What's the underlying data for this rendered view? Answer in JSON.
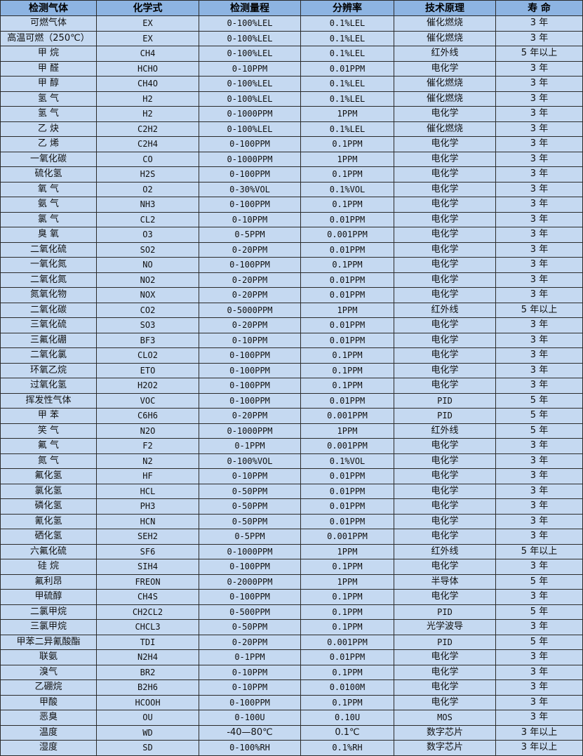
{
  "colors": {
    "header_bg": "#8db4e2",
    "row_bg": "#c5d9f1",
    "border": "#2b2b2b"
  },
  "table": {
    "headers": [
      "检测气体",
      "化学式",
      "检测量程",
      "分辨率",
      "技术原理",
      "寿 命"
    ],
    "rows": [
      [
        "可燃气体",
        "EX",
        "0-100%LEL",
        "0.1%LEL",
        "催化燃烧",
        "3 年"
      ],
      [
        "高温可燃（250℃）",
        "EX",
        "0-100%LEL",
        "0.1%LEL",
        "催化燃烧",
        "3 年"
      ],
      [
        "甲 烷",
        "CH4",
        "0-100%LEL",
        "0.1%LEL",
        "红外线",
        "5 年以上"
      ],
      [
        "甲 醛",
        "HCHO",
        "0-10PPM",
        "0.01PPM",
        "电化学",
        "3 年"
      ],
      [
        "甲 醇",
        "CH4O",
        "0-100%LEL",
        "0.1%LEL",
        "催化燃烧",
        "3 年"
      ],
      [
        "氢 气",
        "H2",
        "0-100%LEL",
        "0.1%LEL",
        "催化燃烧",
        "3 年"
      ],
      [
        "氢 气",
        "H2",
        "0-1000PPM",
        "1PPM",
        "电化学",
        "3 年"
      ],
      [
        "乙 炔",
        "C2H2",
        "0-100%LEL",
        "0.1%LEL",
        "催化燃烧",
        "3 年"
      ],
      [
        "乙 烯",
        "C2H4",
        "0-100PPM",
        "0.1PPM",
        "电化学",
        "3 年"
      ],
      [
        "一氧化碳",
        "CO",
        "0-1000PPM",
        "1PPM",
        "电化学",
        "3 年"
      ],
      [
        "硫化氢",
        "H2S",
        "0-100PPM",
        "0.1PPM",
        "电化学",
        "3 年"
      ],
      [
        "氧 气",
        "O2",
        "0-30%VOL",
        "0.1%VOL",
        "电化学",
        "3 年"
      ],
      [
        "氨 气",
        "NH3",
        "0-100PPM",
        "0.1PPM",
        "电化学",
        "3 年"
      ],
      [
        "氯 气",
        "CL2",
        "0-10PPM",
        "0.01PPM",
        "电化学",
        "3 年"
      ],
      [
        "臭 氧",
        "O3",
        "0-5PPM",
        "0.001PPM",
        "电化学",
        "3 年"
      ],
      [
        "二氧化硫",
        "SO2",
        "0-20PPM",
        "0.01PPM",
        "电化学",
        "3 年"
      ],
      [
        "一氧化氮",
        "NO",
        "0-100PPM",
        "0.1PPM",
        "电化学",
        "3 年"
      ],
      [
        "二氧化氮",
        "NO2",
        "0-20PPM",
        "0.01PPM",
        "电化学",
        "3 年"
      ],
      [
        "氮氧化物",
        "NOX",
        "0-20PPM",
        "0.01PPM",
        "电化学",
        "3 年"
      ],
      [
        "二氧化碳",
        "CO2",
        "0-5000PPM",
        "1PPM",
        "红外线",
        "5 年以上"
      ],
      [
        "三氧化硫",
        "SO3",
        "0-20PPM",
        "0.01PPM",
        "电化学",
        "3 年"
      ],
      [
        "三氟化硼",
        "BF3",
        "0-10PPM",
        "0.01PPM",
        "电化学",
        "3 年"
      ],
      [
        "二氧化氯",
        "CLO2",
        "0-100PPM",
        "0.1PPM",
        "电化学",
        "3 年"
      ],
      [
        "环氧乙烷",
        "ETO",
        "0-100PPM",
        "0.1PPM",
        "电化学",
        "3 年"
      ],
      [
        "过氧化氢",
        "H2O2",
        "0-100PPM",
        "0.1PPM",
        "电化学",
        "3 年"
      ],
      [
        "挥发性气体",
        "VOC",
        "0-100PPM",
        "0.01PPM",
        "PID",
        "5 年"
      ],
      [
        "甲 苯",
        "C6H6",
        "0-20PPM",
        "0.001PPM",
        "PID",
        "5 年"
      ],
      [
        "笑 气",
        "N2O",
        "0-1000PPM",
        "1PPM",
        "红外线",
        "5 年"
      ],
      [
        "氟 气",
        "F2",
        "0-1PPM",
        "0.001PPM",
        "电化学",
        "3 年"
      ],
      [
        "氮 气",
        "N2",
        "0-100%VOL",
        "0.1%VOL",
        "电化学",
        "3 年"
      ],
      [
        "氟化氢",
        "HF",
        "0-10PPM",
        "0.01PPM",
        "电化学",
        "3 年"
      ],
      [
        "氯化氢",
        "HCL",
        "0-50PPM",
        "0.01PPM",
        "电化学",
        "3 年"
      ],
      [
        "磷化氢",
        "PH3",
        "0-50PPM",
        "0.01PPM",
        "电化学",
        "3 年"
      ],
      [
        "氰化氢",
        "HCN",
        "0-50PPM",
        "0.01PPM",
        "电化学",
        "3 年"
      ],
      [
        "硒化氢",
        "SEH2",
        "0-5PPM",
        "0.001PPM",
        "电化学",
        "3 年"
      ],
      [
        "六氟化硫",
        "SF6",
        "0-1000PPM",
        "1PPM",
        "红外线",
        "5 年以上"
      ],
      [
        "硅 烷",
        "SIH4",
        "0-100PPM",
        "0.1PPM",
        "电化学",
        "3 年"
      ],
      [
        "氟利昂",
        "FREON",
        "0-2000PPM",
        "1PPM",
        "半导体",
        "5 年"
      ],
      [
        "甲硫醇",
        "CH4S",
        "0-100PPM",
        "0.1PPM",
        "电化学",
        "3 年"
      ],
      [
        "二氯甲烷",
        "CH2CL2",
        "0-500PPM",
        "0.1PPM",
        "PID",
        "5 年"
      ],
      [
        "三氯甲烷",
        "CHCL3",
        "0-50PPM",
        "0.1PPM",
        "光学波导",
        "3 年"
      ],
      [
        "甲苯二异氰酸酯",
        "TDI",
        "0-20PPM",
        "0.001PPM",
        "PID",
        "5 年"
      ],
      [
        "联氨",
        "N2H4",
        "0-1PPM",
        "0.01PPM",
        "电化学",
        "3 年"
      ],
      [
        "溴气",
        "BR2",
        "0-10PPM",
        "0.1PPM",
        "电化学",
        "3 年"
      ],
      [
        "乙硼烷",
        "B2H6",
        "0-10PPM",
        "0.0100M",
        "电化学",
        "3 年"
      ],
      [
        "甲酸",
        "HCOOH",
        "0-100PPM",
        "0.1PPM",
        "电化学",
        "3 年"
      ],
      [
        "恶臭",
        "OU",
        "0-100U",
        "0.10U",
        "MOS",
        "3 年"
      ],
      [
        "温度",
        "WD",
        "-40—80℃",
        "0.1℃",
        "数字芯片",
        "3 年以上"
      ],
      [
        "湿度",
        "SD",
        "0-100%RH",
        "0.1%RH",
        "数字芯片",
        "3 年以上"
      ]
    ]
  }
}
